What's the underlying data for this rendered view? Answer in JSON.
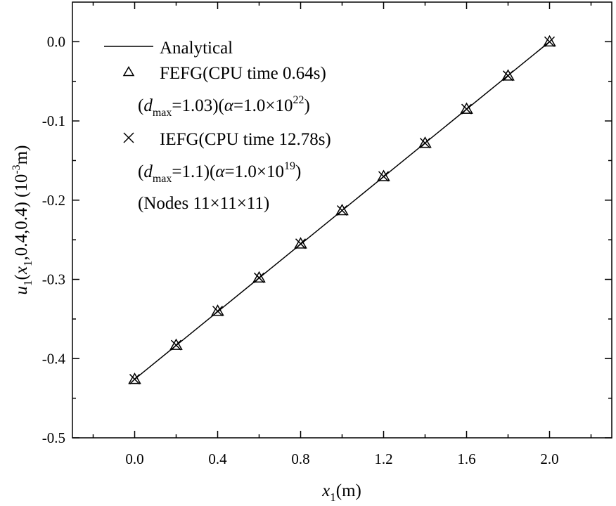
{
  "chart_data": {
    "type": "line",
    "title": "",
    "xlabel": {
      "main": "x",
      "sub": "1",
      "unit": "(m)"
    },
    "ylabel": {
      "u": "u",
      "u_sub": "1",
      "args_open": "(",
      "x": "x",
      "x_sub": "1",
      "args_close": ",0.4,0.4) (10",
      "exp": "-3",
      "unit": "m)"
    },
    "xlim": [
      -0.3,
      2.3
    ],
    "ylim": [
      -0.5,
      0.05
    ],
    "xticks": [
      0.0,
      0.4,
      0.8,
      1.2,
      1.6,
      2.0
    ],
    "xtick_labels": [
      "0.0",
      "0.4",
      "0.8",
      "1.2",
      "1.6",
      "2.0"
    ],
    "yticks": [
      -0.5,
      -0.4,
      -0.3,
      -0.2,
      -0.1,
      0.0
    ],
    "ytick_labels": [
      "-0.5",
      "-0.4",
      "-0.3",
      "-0.2",
      "-0.1",
      "0.0"
    ],
    "grid": false,
    "legend_position": "top-left",
    "series": [
      {
        "name": "Analytical",
        "style": "line",
        "x": [
          0.0,
          2.0
        ],
        "y": [
          -0.426,
          0.0
        ]
      },
      {
        "name": "FEFG(CPU time 0.64s)",
        "style": "triangle",
        "x": [
          0.0,
          0.2,
          0.4,
          0.6,
          0.8,
          1.0,
          1.2,
          1.4,
          1.6,
          1.8,
          2.0
        ],
        "y": [
          -0.426,
          -0.383,
          -0.34,
          -0.298,
          -0.255,
          -0.213,
          -0.17,
          -0.128,
          -0.085,
          -0.043,
          0.0
        ]
      },
      {
        "name": "IEFG(CPU time 12.78s)",
        "style": "cross",
        "x": [
          0.0,
          0.2,
          0.4,
          0.6,
          0.8,
          1.0,
          1.2,
          1.4,
          1.6,
          1.8,
          2.0
        ],
        "y": [
          -0.426,
          -0.383,
          -0.34,
          -0.298,
          -0.255,
          -0.213,
          -0.17,
          -0.128,
          -0.085,
          -0.043,
          0.0
        ]
      }
    ],
    "legend": {
      "analytical": "Analytical",
      "fefg": "FEFG(CPU time 0.64s)",
      "fefg_param": {
        "open": "(",
        "d": "d",
        "d_sub": "max",
        "mid": "=1.03)(",
        "alpha": "α",
        "alpha_eq": "=1.0×10",
        "exp": "22",
        "close": ")"
      },
      "iefg": "IEFG(CPU time 12.78s)",
      "iefg_param": {
        "open": "(",
        "d": "d",
        "d_sub": "max",
        "mid": "=1.1)(",
        "alpha": "α",
        "alpha_eq": "=1.0×10",
        "exp": "19",
        "close": ")"
      },
      "nodes": "(Nodes 11×11×11)"
    },
    "colors": {
      "line": "#000000",
      "markers": "#000000",
      "background": "#ffffff"
    }
  }
}
